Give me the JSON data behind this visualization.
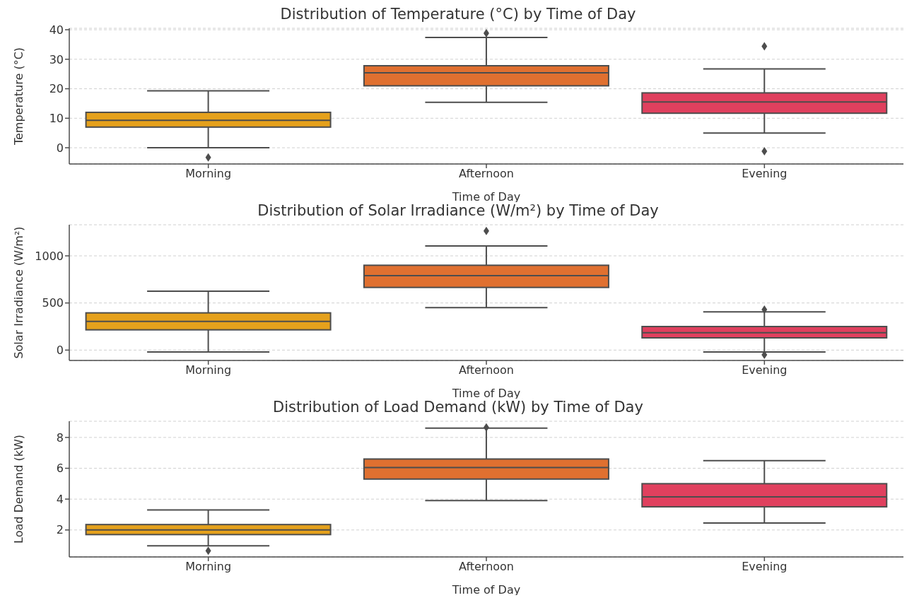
{
  "chart_data": [
    {
      "type": "box",
      "title": "Distribution of Temperature (°C) by Time of Day",
      "xlabel": "Time of Day",
      "ylabel": "Temperature (°C)",
      "categories": [
        "Morning",
        "Afternoon",
        "Evening"
      ],
      "colors": [
        "#e5a11c",
        "#e07030",
        "#e0405e"
      ],
      "boxes": [
        {
          "low": 0,
          "q1": 7,
          "median": 9.3,
          "q3": 12,
          "high": 19.3,
          "outliers": [
            -3.3
          ]
        },
        {
          "low": 15.4,
          "q1": 21,
          "median": 25.4,
          "q3": 27.8,
          "high": 37.4,
          "outliers": [
            38.8
          ]
        },
        {
          "low": 5,
          "q1": 11.7,
          "median": 15.5,
          "q3": 18.6,
          "high": 26.7,
          "outliers": [
            34.4,
            -1.2
          ]
        }
      ],
      "ylim": [
        -5.5,
        40.5
      ],
      "yticks": [
        0,
        10,
        20,
        30,
        40
      ],
      "grid": "y",
      "legend": false
    },
    {
      "type": "box",
      "title": "Distribution of Solar Irradiance (W/m²) by Time of Day",
      "xlabel": "Time of Day",
      "ylabel": "Solar Irradiance (W/m²)",
      "categories": [
        "Morning",
        "Afternoon",
        "Evening"
      ],
      "colors": [
        "#e5a11c",
        "#e07030",
        "#e0405e"
      ],
      "boxes": [
        {
          "low": -20,
          "q1": 215,
          "median": 305,
          "q3": 395,
          "high": 625
        },
        {
          "low": 450,
          "q1": 665,
          "median": 790,
          "q3": 900,
          "high": 1105,
          "outliers": [
            1265
          ]
        },
        {
          "low": -20,
          "q1": 130,
          "median": 185,
          "q3": 250,
          "high": 405,
          "outliers": [
            430,
            -50
          ]
        }
      ],
      "ylim": [
        -110,
        1330
      ],
      "yticks": [
        0,
        500,
        1000
      ],
      "grid": "y",
      "legend": false
    },
    {
      "type": "box",
      "title": "Distribution of Load Demand (kW) by Time of Day",
      "xlabel": "Time of Day",
      "ylabel": "Load Demand (kW)",
      "categories": [
        "Morning",
        "Afternoon",
        "Evening"
      ],
      "colors": [
        "#e5a11c",
        "#e07030",
        "#e0405e"
      ],
      "boxes": [
        {
          "low": 0.97,
          "q1": 1.7,
          "median": 2.0,
          "q3": 2.35,
          "high": 3.3,
          "outliers": [
            0.65
          ]
        },
        {
          "low": 3.9,
          "q1": 5.3,
          "median": 6.05,
          "q3": 6.6,
          "high": 8.6,
          "outliers": [
            8.65
          ]
        },
        {
          "low": 2.45,
          "q1": 3.5,
          "median": 4.15,
          "q3": 5.0,
          "high": 6.5
        }
      ],
      "ylim": [
        0.25,
        9.05
      ],
      "yticks": [
        2,
        4,
        6,
        8
      ],
      "grid": "y",
      "legend": false
    }
  ]
}
